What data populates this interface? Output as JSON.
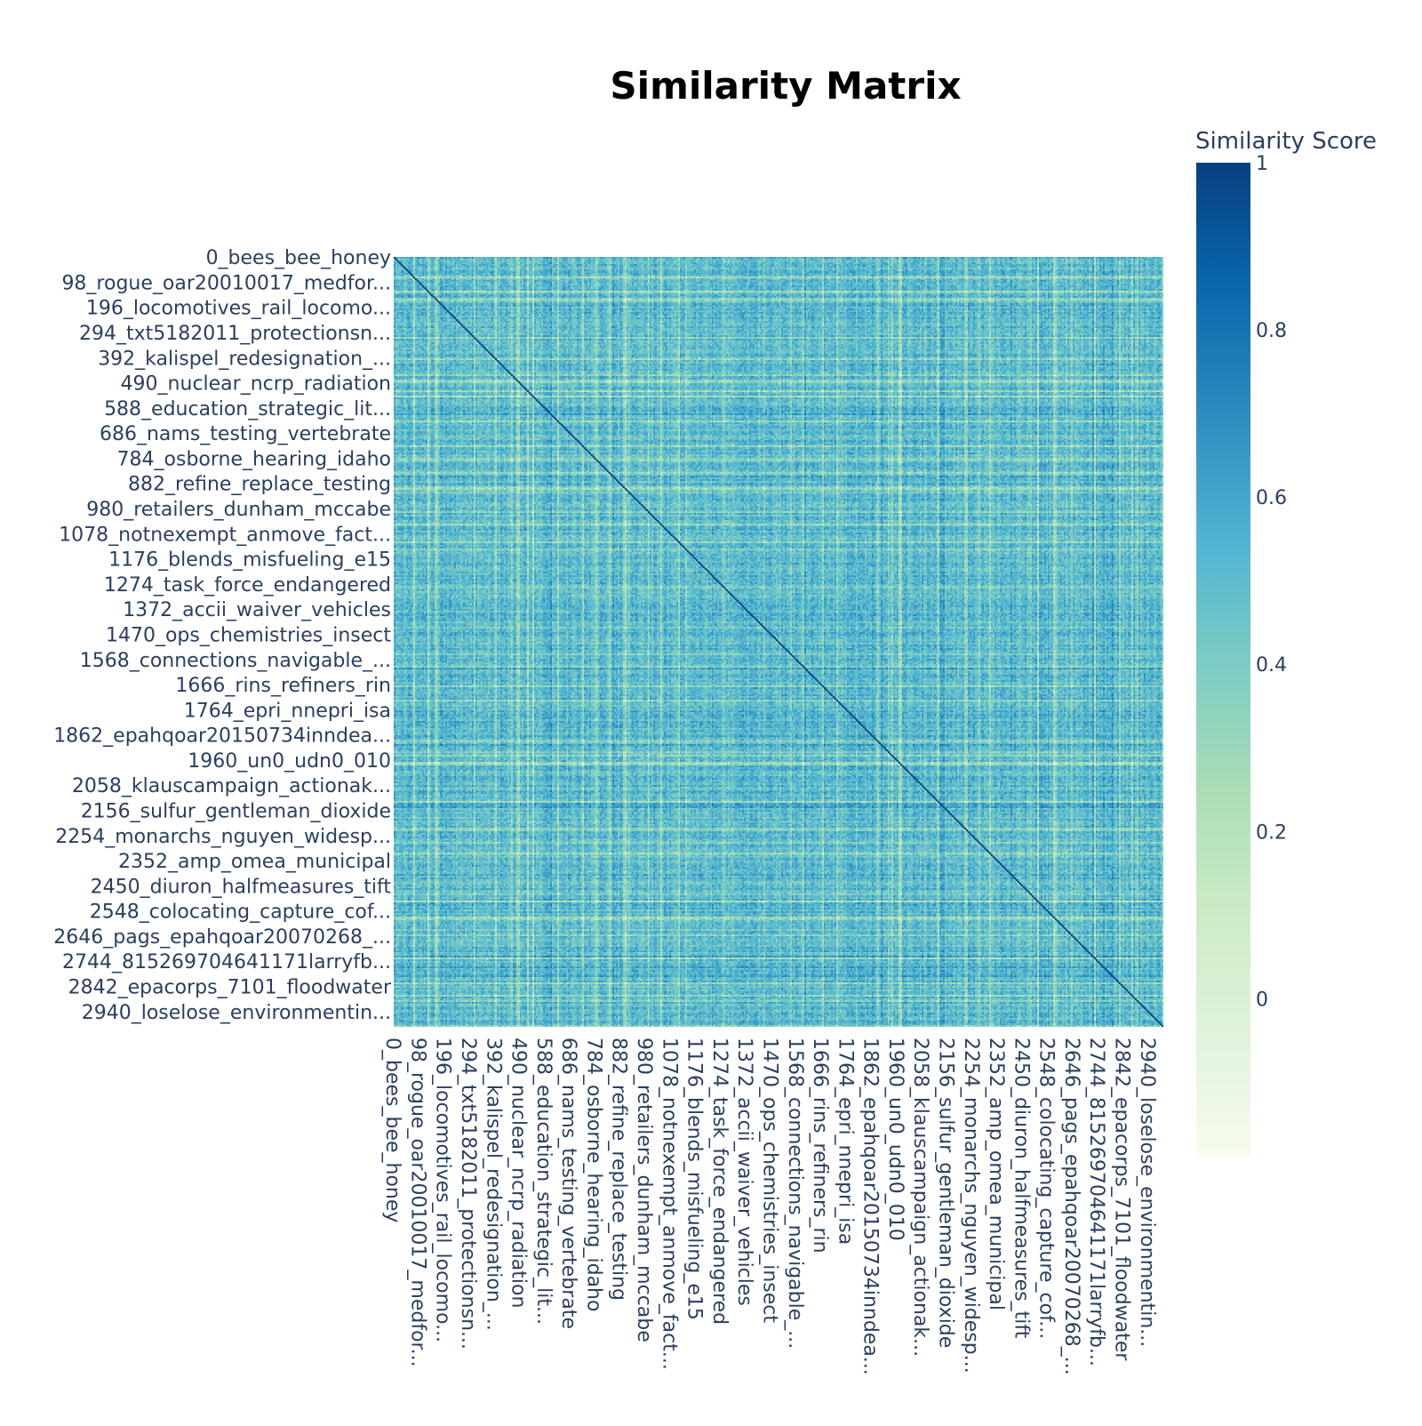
{
  "chart_data": {
    "type": "heatmap",
    "title": "Similarity Matrix",
    "xlabel": "",
    "ylabel": "",
    "colorscale": "GnBu",
    "colorscale_colors": [
      "#f7fcf0",
      "#e0f3db",
      "#ccebc5",
      "#a8ddb5",
      "#7bccc4",
      "#4eb3d3",
      "#2b8cbe",
      "#0868ac",
      "#084081"
    ],
    "diagonal_color": "#0b3f7f",
    "colorbar": {
      "title": "Similarity Score",
      "range": [
        -0.19,
        1.0
      ],
      "ticks": [
        0,
        0.2,
        0.4,
        0.6,
        0.8,
        1
      ],
      "tick_labels": [
        "0",
        "0.2",
        "0.4",
        "0.6",
        "0.8",
        "1"
      ]
    },
    "matrix_size": 3000,
    "diagonal_value": 1,
    "typical_off_diagonal_range": [
      0.3,
      0.7
    ],
    "tick_labels": [
      "0_bees_bee_honey",
      "98_rogue_oar20010017_medfor...",
      "196_locomotives_rail_locomo...",
      "294_txt5182011_protectionsn...",
      "392_kalispel_redesignation_...",
      "490_nuclear_ncrp_radiation",
      "588_education_strategic_lit...",
      "686_nams_testing_vertebrate",
      "784_osborne_hearing_idaho",
      "882_refine_replace_testing",
      "980_retailers_dunham_mccabe",
      "1078_notnexempt_anmove_fact...",
      "1176_blends_misfueling_e15",
      "1274_task_force_endangered",
      "1372_accii_waiver_vehicles",
      "1470_ops_chemistries_insect",
      "1568_connections_navigable_...",
      "1666_rins_refiners_rin",
      "1764_epri_nnepri_isa",
      "1862_epahqoar20150734inndea...",
      "1960_un0_udn0_010",
      "2058_klauscampaign_actionak...",
      "2156_sulfur_gentleman_dioxide",
      "2254_monarchs_nguyen_widesp...",
      "2352_amp_omea_municipal",
      "2450_diuron_halfmeasures_tift",
      "2548_colocating_capture_cof...",
      "2646_pags_epahqoar20070268_...",
      "2744_815269704641171larryfb...",
      "2842_epacorps_7101_floodwater",
      "2940_loselose_environmentin..."
    ],
    "tick_indices": [
      0,
      98,
      196,
      294,
      392,
      490,
      588,
      686,
      784,
      882,
      980,
      1078,
      1176,
      1274,
      1372,
      1470,
      1568,
      1666,
      1764,
      1862,
      1960,
      2058,
      2156,
      2254,
      2352,
      2450,
      2548,
      2646,
      2744,
      2842,
      2940
    ]
  }
}
